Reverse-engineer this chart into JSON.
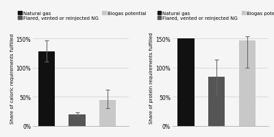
{
  "left_chart": {
    "ylabel": "Share of caloric requirements fulfilled",
    "bars": [
      {
        "label": "Natural gas",
        "value": 1.28,
        "error_low": 0.18,
        "error_high": 0.18,
        "color": "#111111"
      },
      {
        "label": "Flared, vented or reinjected NG",
        "value": 0.2,
        "error_low": 0.03,
        "error_high": 0.03,
        "color": "#555555"
      },
      {
        "label": "Biogas potential",
        "value": 0.44,
        "error_low": 0.14,
        "error_high": 0.18,
        "color": "#c8c8c8"
      }
    ],
    "ylim": [
      0,
      1.65
    ],
    "yticks": [
      0,
      0.5,
      1.0,
      1.5
    ],
    "yticklabels": [
      "0%",
      "50%",
      "100%",
      "150%"
    ]
  },
  "right_chart": {
    "ylabel": "Share of protein requirements fulfilled",
    "bars": [
      {
        "label": "Natural gas",
        "value": 1.5,
        "error_low": 0.0,
        "error_high": 0.0,
        "color": "#111111"
      },
      {
        "label": "Flared, vented or reinjected NG",
        "value": 0.84,
        "error_low": 0.3,
        "error_high": 0.3,
        "color": "#555555"
      },
      {
        "label": "Biogas potential",
        "value": 1.47,
        "error_low": 0.47,
        "error_high": 0.06,
        "color": "#c8c8c8"
      }
    ],
    "ylim": [
      0,
      1.65
    ],
    "yticks": [
      0,
      0.5,
      1.0,
      1.5
    ],
    "yticklabels": [
      "0%",
      "50%",
      "100%",
      "150%"
    ]
  },
  "legend_labels": [
    "Natural gas",
    "Flared, vented or reinjected NG",
    "Biogas potential"
  ],
  "legend_colors": [
    "#111111",
    "#555555",
    "#c8c8c8"
  ],
  "background_color": "#f5f5f5",
  "bar_width": 0.55,
  "x_positions": [
    1,
    2,
    3
  ],
  "fontsize": 5.5,
  "ylabel_fontsize": 5.0,
  "legend_fontsize": 5.0
}
